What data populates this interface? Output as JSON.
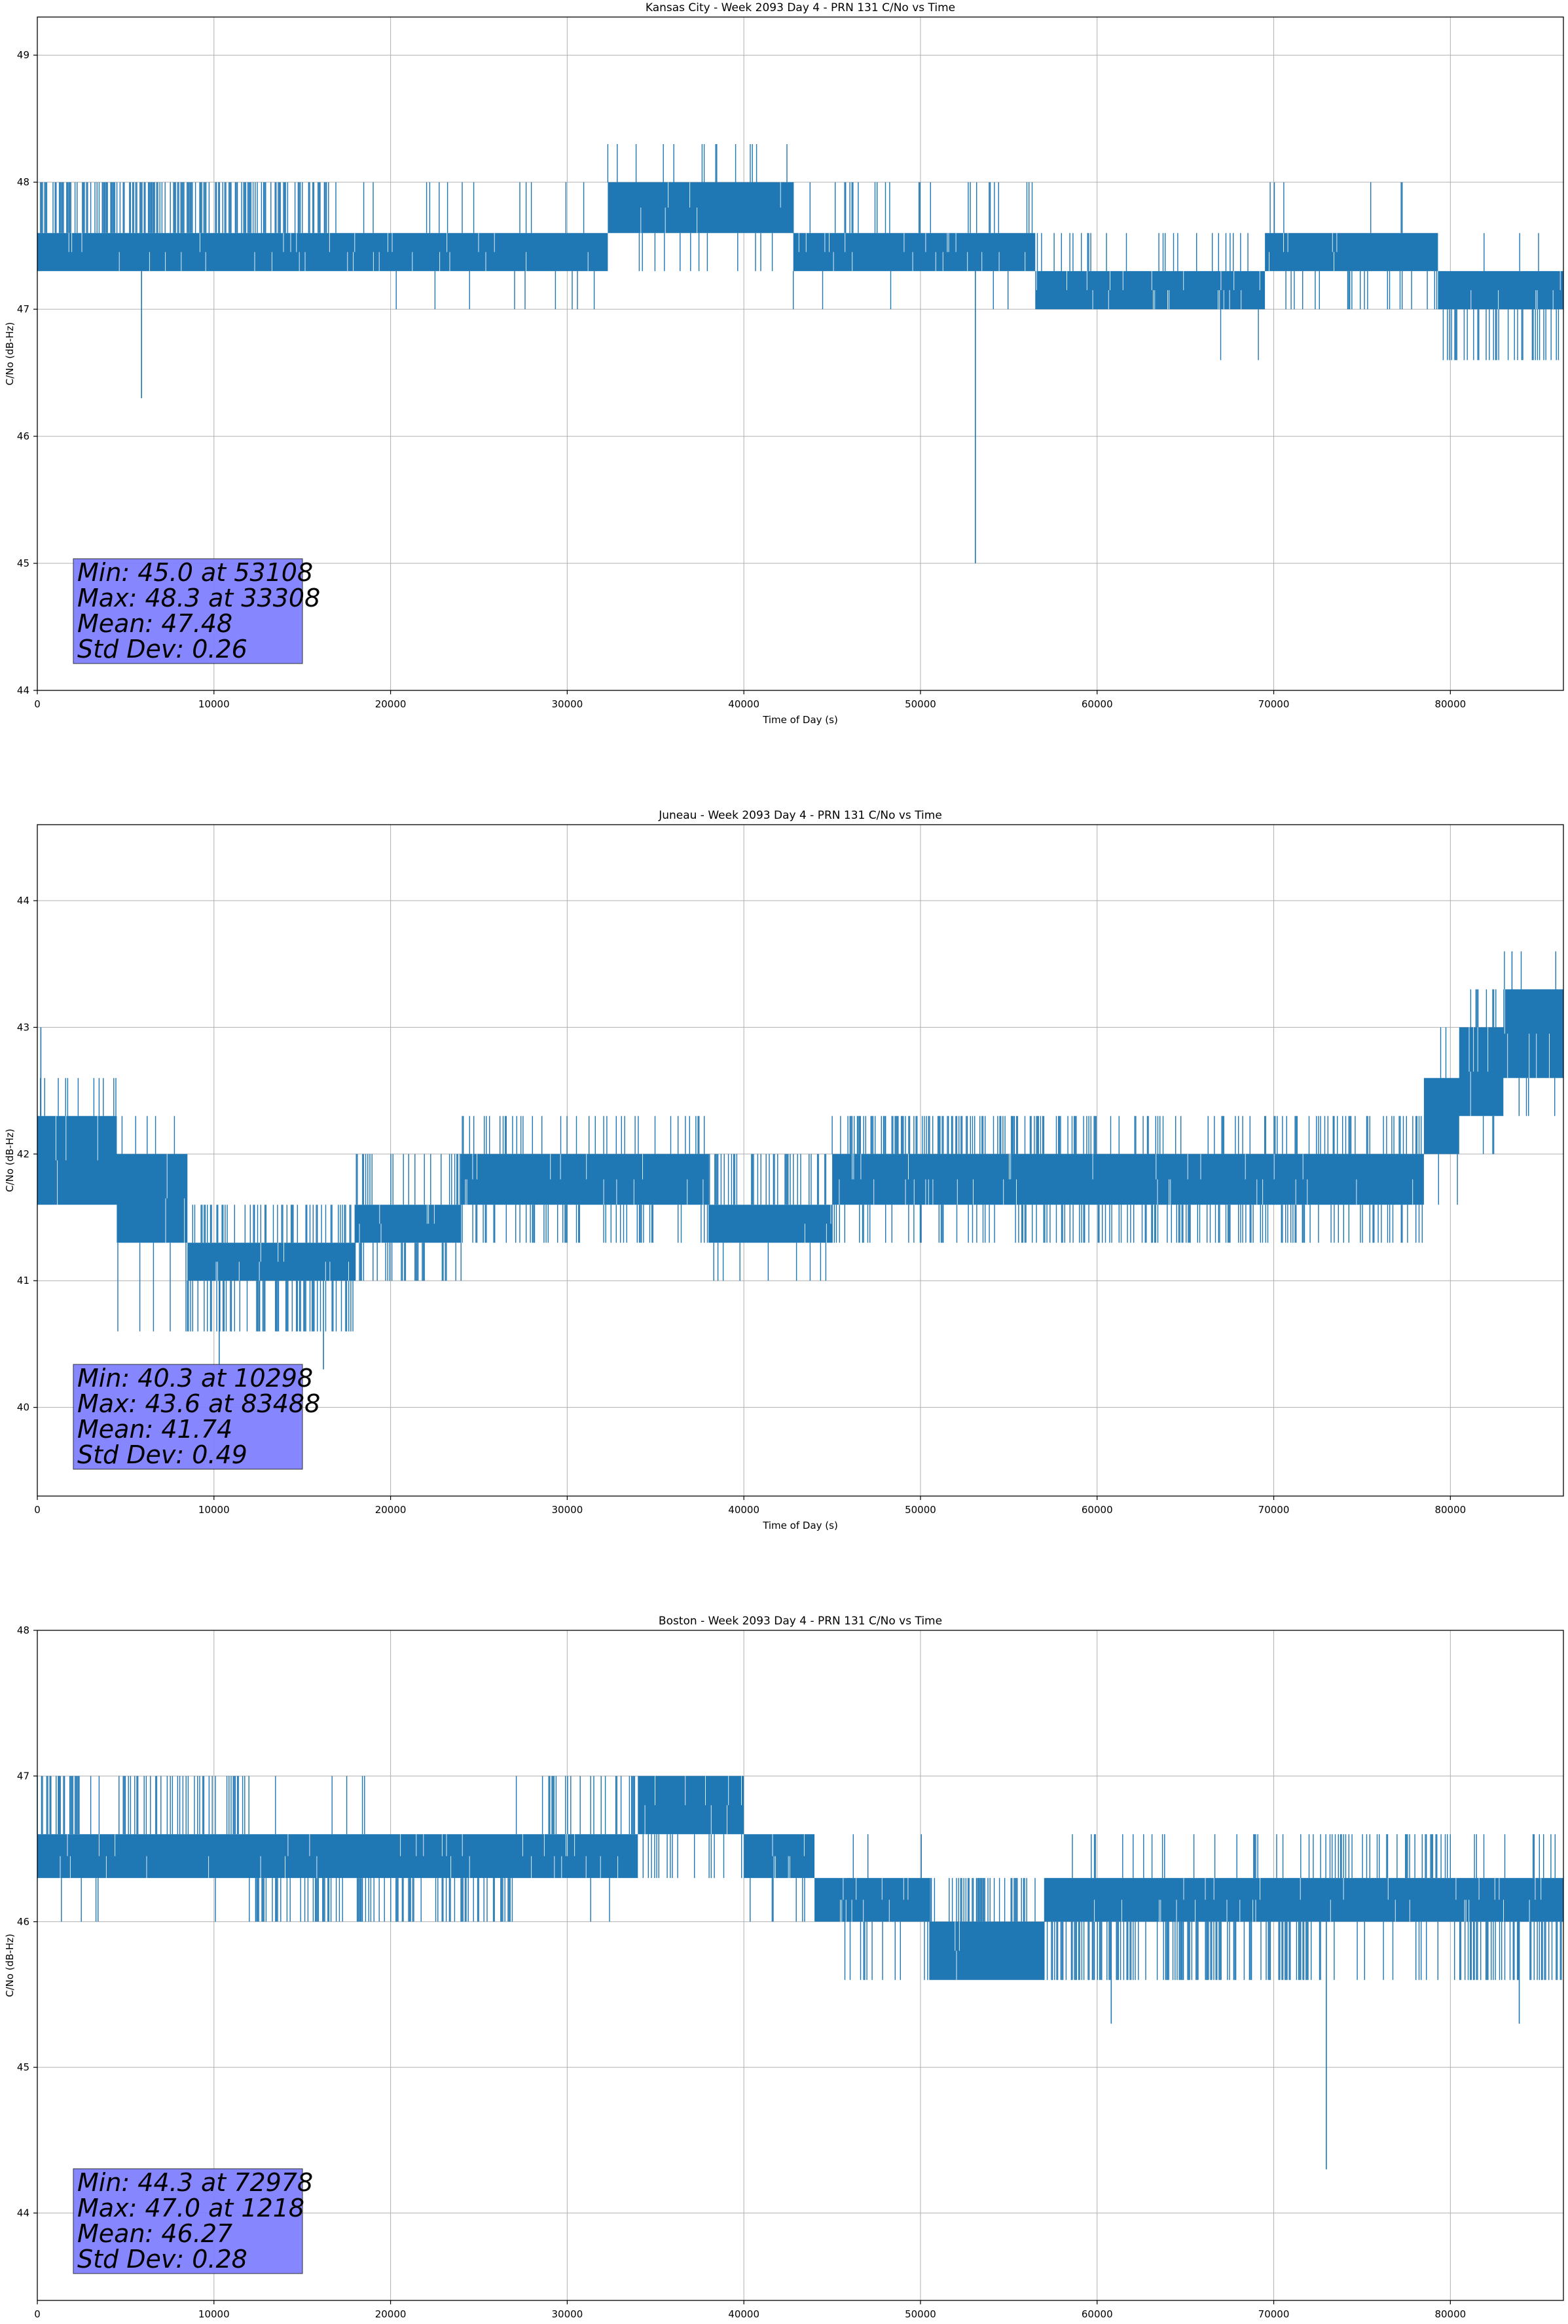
{
  "chart_data": [
    {
      "type": "line",
      "title": "Kansas City - Week 2093 Day 4 - PRN 131 C/No vs Time",
      "xlabel": "Time of Day (s)",
      "ylabel": "C/No (dB-Hz)",
      "xlim": [
        0,
        86400
      ],
      "ylim": [
        44,
        49.3
      ],
      "xticks": [
        0,
        10000,
        20000,
        30000,
        40000,
        50000,
        60000,
        70000,
        80000
      ],
      "yticks": [
        44,
        45,
        46,
        47,
        48,
        49
      ],
      "grid": true,
      "line_color": "#1f77b4",
      "quantization": 0.3,
      "segments": [
        {
          "x0": 0,
          "x1": 17000,
          "lo": 47.3,
          "hi": 47.6,
          "up": [
            48.0
          ],
          "up_rate": 0.45,
          "down": [],
          "down_rate": 0
        },
        {
          "x0": 17000,
          "x1": 32300,
          "lo": 47.3,
          "hi": 47.6,
          "up": [
            48.0
          ],
          "up_rate": 0.04,
          "down": [
            47.0
          ],
          "down_rate": 0.03
        },
        {
          "x0": 32300,
          "x1": 42800,
          "lo": 47.6,
          "hi": 48.0,
          "up": [
            48.3
          ],
          "up_rate": 0.05,
          "down": [
            47.3
          ],
          "down_rate": 0.04
        },
        {
          "x0": 42800,
          "x1": 56500,
          "lo": 47.3,
          "hi": 47.6,
          "up": [
            48.0
          ],
          "up_rate": 0.12,
          "down": [
            47.0
          ],
          "down_rate": 0.02
        },
        {
          "x0": 56500,
          "x1": 69500,
          "lo": 47.0,
          "hi": 47.3,
          "up": [
            47.6
          ],
          "up_rate": 0.12,
          "down": [
            46.6
          ],
          "down_rate": 0.02
        },
        {
          "x0": 69500,
          "x1": 79300,
          "lo": 47.3,
          "hi": 47.6,
          "up": [
            48.0
          ],
          "up_rate": 0.05,
          "down": [
            47.0
          ],
          "down_rate": 0.12
        },
        {
          "x0": 79300,
          "x1": 86400,
          "lo": 47.0,
          "hi": 47.3,
          "up": [
            47.6
          ],
          "up_rate": 0.03,
          "down": [
            46.6
          ],
          "down_rate": 0.3
        }
      ],
      "spikes": [
        {
          "x": 5900,
          "y": 46.3
        },
        {
          "x": 53108,
          "y": 45.0
        }
      ],
      "stats": {
        "line1": "Min: 45.0 at 53108",
        "line2": "Max: 48.3 at 33308",
        "line3": "Mean: 47.48",
        "line4": "Std Dev: 0.26",
        "box_color": "#8080ff"
      }
    },
    {
      "type": "line",
      "title": "Juneau - Week 2093 Day 4 - PRN 131 C/No vs Time",
      "xlabel": "Time of Day (s)",
      "ylabel": "C/No (dB-Hz)",
      "xlim": [
        0,
        86400
      ],
      "ylim": [
        39.3,
        44.6
      ],
      "xticks": [
        0,
        10000,
        20000,
        30000,
        40000,
        50000,
        60000,
        70000,
        80000
      ],
      "yticks": [
        40,
        41,
        42,
        43,
        44
      ],
      "grid": true,
      "line_color": "#1f77b4",
      "quantization": 0.3,
      "segments": [
        {
          "x0": 0,
          "x1": 4500,
          "lo": 41.6,
          "hi": 42.3,
          "up": [
            42.6
          ],
          "up_rate": 0.15,
          "down": [],
          "down_rate": 0
        },
        {
          "x0": 4500,
          "x1": 8500,
          "lo": 41.3,
          "hi": 42.0,
          "up": [
            42.3
          ],
          "up_rate": 0.05,
          "down": [
            40.6
          ],
          "down_rate": 0.06
        },
        {
          "x0": 8500,
          "x1": 18000,
          "lo": 41.0,
          "hi": 41.3,
          "up": [
            41.6
          ],
          "up_rate": 0.35,
          "down": [
            40.6
          ],
          "down_rate": 0.35
        },
        {
          "x0": 18000,
          "x1": 24000,
          "lo": 41.3,
          "hi": 41.6,
          "up": [
            42.0
          ],
          "up_rate": 0.2,
          "down": [
            41.0
          ],
          "down_rate": 0.25
        },
        {
          "x0": 24000,
          "x1": 38000,
          "lo": 41.6,
          "hi": 42.0,
          "up": [
            42.3
          ],
          "up_rate": 0.2,
          "down": [
            41.3
          ],
          "down_rate": 0.2
        },
        {
          "x0": 38000,
          "x1": 45000,
          "lo": 41.3,
          "hi": 41.6,
          "up": [
            42.0
          ],
          "up_rate": 0.3,
          "down": [
            41.0
          ],
          "down_rate": 0.05
        },
        {
          "x0": 45000,
          "x1": 60000,
          "lo": 41.6,
          "hi": 42.0,
          "up": [
            42.3
          ],
          "up_rate": 0.35,
          "down": [
            41.3
          ],
          "down_rate": 0.2
        },
        {
          "x0": 60000,
          "x1": 72000,
          "lo": 41.6,
          "hi": 42.0,
          "up": [
            42.3
          ],
          "up_rate": 0.15,
          "down": [
            41.3
          ],
          "down_rate": 0.35
        },
        {
          "x0": 72000,
          "x1": 78500,
          "lo": 41.6,
          "hi": 42.0,
          "up": [
            42.3
          ],
          "up_rate": 0.25,
          "down": [
            41.3
          ],
          "down_rate": 0.2
        },
        {
          "x0": 78500,
          "x1": 80500,
          "lo": 42.0,
          "hi": 42.6,
          "up": [
            43.0
          ],
          "up_rate": 0.1,
          "down": [
            41.6
          ],
          "down_rate": 0.15
        },
        {
          "x0": 80500,
          "x1": 83000,
          "lo": 42.3,
          "hi": 43.0,
          "up": [
            43.3
          ],
          "up_rate": 0.2,
          "down": [
            42.0
          ],
          "down_rate": 0.05
        },
        {
          "x0": 83000,
          "x1": 86400,
          "lo": 42.6,
          "hi": 43.3,
          "up": [
            43.6
          ],
          "up_rate": 0.04,
          "down": [
            42.3
          ],
          "down_rate": 0.05
        }
      ],
      "spikes": [
        {
          "x": 200,
          "y": 43.0
        },
        {
          "x": 10298,
          "y": 40.3
        },
        {
          "x": 16200,
          "y": 40.3
        },
        {
          "x": 83488,
          "y": 43.6
        }
      ],
      "stats": {
        "line1": "Min: 40.3 at 10298",
        "line2": "Max: 43.6 at 83488",
        "line3": "Mean: 41.74",
        "line4": "Std Dev: 0.49",
        "box_color": "#8080ff"
      }
    },
    {
      "type": "line",
      "title": "Boston - Week 2093 Day 4 - PRN 131 C/No vs Time",
      "xlabel": "Time of Day (s)",
      "ylabel": "C/No (dB-Hz)",
      "xlim": [
        0,
        86400
      ],
      "ylim": [
        43.4,
        48.0
      ],
      "xticks": [
        0,
        10000,
        20000,
        30000,
        40000,
        50000,
        60000,
        70000,
        80000
      ],
      "yticks": [
        44,
        45,
        46,
        47,
        48
      ],
      "grid": true,
      "line_color": "#1f77b4",
      "quantization": 0.3,
      "segments": [
        {
          "x0": 0,
          "x1": 12000,
          "lo": 46.3,
          "hi": 46.6,
          "up": [
            47.0
          ],
          "up_rate": 0.35,
          "down": [
            46.0
          ],
          "down_rate": 0.02
        },
        {
          "x0": 12000,
          "x1": 27000,
          "lo": 46.3,
          "hi": 46.6,
          "up": [
            47.0
          ],
          "up_rate": 0.02,
          "down": [
            46.0
          ],
          "down_rate": 0.35
        },
        {
          "x0": 27000,
          "x1": 34000,
          "lo": 46.3,
          "hi": 46.6,
          "up": [
            47.0
          ],
          "up_rate": 0.15,
          "down": [
            46.0
          ],
          "down_rate": 0.03
        },
        {
          "x0": 34000,
          "x1": 40000,
          "lo": 46.6,
          "hi": 47.0,
          "up": [],
          "up_rate": 0,
          "down": [
            46.3
          ],
          "down_rate": 0.1
        },
        {
          "x0": 40000,
          "x1": 44000,
          "lo": 46.3,
          "hi": 46.6,
          "up": [
            47.0
          ],
          "up_rate": 0.05,
          "down": [
            46.0
          ],
          "down_rate": 0.05
        },
        {
          "x0": 44000,
          "x1": 50500,
          "lo": 46.0,
          "hi": 46.3,
          "up": [
            46.6
          ],
          "up_rate": 0.05,
          "down": [
            45.6
          ],
          "down_rate": 0.06
        },
        {
          "x0": 50500,
          "x1": 57000,
          "lo": 45.6,
          "hi": 46.0,
          "up": [
            46.3
          ],
          "up_rate": 0.35,
          "down": [],
          "down_rate": 0
        },
        {
          "x0": 57000,
          "x1": 72000,
          "lo": 46.0,
          "hi": 46.3,
          "up": [
            46.6
          ],
          "up_rate": 0.06,
          "down": [
            45.6
          ],
          "down_rate": 0.4
        },
        {
          "x0": 72000,
          "x1": 80000,
          "lo": 46.0,
          "hi": 46.3,
          "up": [
            46.6
          ],
          "up_rate": 0.35,
          "down": [
            45.6
          ],
          "down_rate": 0.15
        },
        {
          "x0": 80000,
          "x1": 86400,
          "lo": 46.0,
          "hi": 46.3,
          "up": [
            46.6
          ],
          "up_rate": 0.08,
          "down": [
            45.6
          ],
          "down_rate": 0.35
        }
      ],
      "spikes": [
        {
          "x": 60800,
          "y": 45.3
        },
        {
          "x": 72978,
          "y": 44.3
        },
        {
          "x": 83900,
          "y": 45.3
        },
        {
          "x": 1218,
          "y": 47.0
        }
      ],
      "stats": {
        "line1": "Min: 44.3 at 72978",
        "line2": "Max: 47.0 at 1218",
        "line3": "Mean: 46.27",
        "line4": "Std Dev: 0.28",
        "box_color": "#8080ff"
      }
    }
  ]
}
